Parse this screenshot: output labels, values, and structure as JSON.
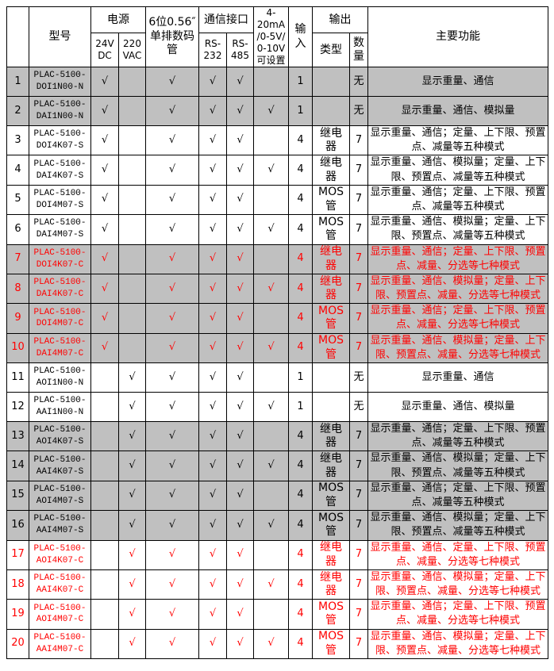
{
  "colors": {
    "highlight_red": "#ff0000",
    "row_shade_gray": "#c0c0c0",
    "grid_line": "#000000",
    "page_background": "#ffffff"
  },
  "table": {
    "check_mark": "√",
    "header": {
      "index": "",
      "model": "型号",
      "power": "电源",
      "power_24v": "24V\nDC",
      "power_220v": "220\nVAC",
      "display": "6位0.56″\n单排数码\n管",
      "comm": "通信接口",
      "rs232": "RS-\n232",
      "rs485": "RS-\n485",
      "analog": "4-20mA\n/0-5V/\n0-10V\n可设置",
      "input": "输\n入",
      "output": "输出",
      "out_type": "类型",
      "out_qty": "数\n量",
      "functions": "主要功能"
    },
    "rows": [
      {
        "no": "1",
        "model": "PLAC-5100-DOI1N00-N",
        "checks": {
          "v24": true,
          "v220": false,
          "display": true,
          "rs232": true,
          "rs485": true,
          "analog": false
        },
        "input": "1",
        "output_type": "",
        "output_qty": "无",
        "functions": "显示重量、通信",
        "shaded": true,
        "highlight": false
      },
      {
        "no": "2",
        "model": "PLAC-5100-DAI1N00-N",
        "checks": {
          "v24": true,
          "v220": false,
          "display": true,
          "rs232": true,
          "rs485": true,
          "analog": true
        },
        "input": "1",
        "output_type": "",
        "output_qty": "无",
        "functions": "显示重量、通信、模拟量",
        "shaded": true,
        "highlight": false
      },
      {
        "no": "3",
        "model": "PLAC-5100-DOI4K07-S",
        "checks": {
          "v24": true,
          "v220": false,
          "display": true,
          "rs232": true,
          "rs485": true,
          "analog": false
        },
        "input": "4",
        "output_type": "继电\n器",
        "output_qty": "7",
        "functions": "显示重量、通信；定量、上下限、预置点、减量等五种模式",
        "shaded": false,
        "highlight": false
      },
      {
        "no": "4",
        "model": "PLAC-5100-DAI4K07-S",
        "checks": {
          "v24": true,
          "v220": false,
          "display": true,
          "rs232": true,
          "rs485": true,
          "analog": true
        },
        "input": "4",
        "output_type": "继电\n器",
        "output_qty": "7",
        "functions": "显示重量、通信、模拟量；定量、上下限、预置点、减量等五种模式",
        "shaded": false,
        "highlight": false
      },
      {
        "no": "5",
        "model": "PLAC-5100-DOI4M07-S",
        "checks": {
          "v24": true,
          "v220": false,
          "display": true,
          "rs232": true,
          "rs485": true,
          "analog": false
        },
        "input": "4",
        "output_type": "MOS\n管",
        "output_qty": "7",
        "functions": "显示重量、通信；定量、上下限、预置点、减量等五种模式",
        "shaded": false,
        "highlight": false
      },
      {
        "no": "6",
        "model": "PLAC-5100-DAI4M07-S",
        "checks": {
          "v24": true,
          "v220": false,
          "display": true,
          "rs232": true,
          "rs485": true,
          "analog": true
        },
        "input": "4",
        "output_type": "MOS\n管",
        "output_qty": "7",
        "functions": "显示重量、通信、模拟量；定量、上下限、预置点、减量等五种模式",
        "shaded": false,
        "highlight": false
      },
      {
        "no": "7",
        "model": "PLAC-5100-DOI4K07-C",
        "checks": {
          "v24": true,
          "v220": false,
          "display": true,
          "rs232": true,
          "rs485": true,
          "analog": false
        },
        "input": "4",
        "output_type": "继电\n器",
        "output_qty": "7",
        "functions": "显示重量、通信；定量、上下限、预置点、减量、分选等七种模式",
        "shaded": true,
        "highlight": true
      },
      {
        "no": "8",
        "model": "PLAC-5100-DAI4K07-C",
        "checks": {
          "v24": true,
          "v220": false,
          "display": true,
          "rs232": true,
          "rs485": true,
          "analog": true
        },
        "input": "4",
        "output_type": "继电\n器",
        "output_qty": "7",
        "functions": "显示重量、通信、模拟量；定量、上下限、预置点、减量、分选等七种模式",
        "shaded": true,
        "highlight": true
      },
      {
        "no": "9",
        "model": "PLAC-5100-DOI4M07-C",
        "checks": {
          "v24": true,
          "v220": false,
          "display": true,
          "rs232": true,
          "rs485": true,
          "analog": false
        },
        "input": "4",
        "output_type": "MOS\n管",
        "output_qty": "7",
        "functions": "显示重量、通信；定量、上下限、预置点、减量、分选等七种模式",
        "shaded": true,
        "highlight": true
      },
      {
        "no": "10",
        "model": "PLAC-5100-DAI4M07-C",
        "checks": {
          "v24": true,
          "v220": false,
          "display": true,
          "rs232": true,
          "rs485": true,
          "analog": true
        },
        "input": "4",
        "output_type": "MOS\n管",
        "output_qty": "7",
        "functions": "显示重量、通信、模拟量；定量、上下限、预置点、减量、分选等七种模式",
        "shaded": true,
        "highlight": true
      },
      {
        "no": "11",
        "model": "PLAC-5100-AOI1N00-N",
        "checks": {
          "v24": false,
          "v220": true,
          "display": true,
          "rs232": true,
          "rs485": true,
          "analog": false
        },
        "input": "1",
        "output_type": "",
        "output_qty": "无",
        "functions": "显示重量、通信",
        "shaded": false,
        "highlight": false
      },
      {
        "no": "12",
        "model": "PLAC-5100-AAI1N00-N",
        "checks": {
          "v24": false,
          "v220": true,
          "display": true,
          "rs232": true,
          "rs485": true,
          "analog": true
        },
        "input": "1",
        "output_type": "",
        "output_qty": "无",
        "functions": "显示重量、通信、模拟量",
        "shaded": false,
        "highlight": false
      },
      {
        "no": "13",
        "model": "PLAC-5100-AOI4K07-S",
        "checks": {
          "v24": false,
          "v220": true,
          "display": true,
          "rs232": true,
          "rs485": true,
          "analog": false
        },
        "input": "4",
        "output_type": "继电\n器",
        "output_qty": "7",
        "functions": "显示重量、通信；定量、上下限、预置点、减量等五种模式",
        "shaded": true,
        "highlight": false
      },
      {
        "no": "14",
        "model": "PLAC-5100-AAI4K07-S",
        "checks": {
          "v24": false,
          "v220": true,
          "display": true,
          "rs232": true,
          "rs485": true,
          "analog": true
        },
        "input": "4",
        "output_type": "继电\n器",
        "output_qty": "7",
        "functions": "显示重量、通信、模拟量；定量、上下限、预置点、减量等五种模式",
        "shaded": true,
        "highlight": false
      },
      {
        "no": "15",
        "model": "PLAC-5100-AOI4M07-S",
        "checks": {
          "v24": false,
          "v220": true,
          "display": true,
          "rs232": true,
          "rs485": true,
          "analog": false
        },
        "input": "4",
        "output_type": "MOS\n管",
        "output_qty": "7",
        "functions": "显示重量、通信；定量、上下限、预置点、减量等五种模式",
        "shaded": true,
        "highlight": false
      },
      {
        "no": "16",
        "model": "PLAC-5100-AAI4M07-S",
        "checks": {
          "v24": false,
          "v220": true,
          "display": true,
          "rs232": true,
          "rs485": true,
          "analog": true
        },
        "input": "4",
        "output_type": "MOS\n管",
        "output_qty": "7",
        "functions": "显示重量、通信、模拟量；定量、上下限、预置点、减量等五种模式",
        "shaded": true,
        "highlight": false
      },
      {
        "no": "17",
        "model": "PLAC-5100-AOI4K07-C",
        "checks": {
          "v24": false,
          "v220": true,
          "display": true,
          "rs232": true,
          "rs485": true,
          "analog": false
        },
        "input": "4",
        "output_type": "继电\n器",
        "output_qty": "7",
        "functions": "显示重量、通信、定量、上下限、预置点、减量、分选等七种模式",
        "shaded": false,
        "highlight": true
      },
      {
        "no": "18",
        "model": "PLAC-5100-AAI4K07-C",
        "checks": {
          "v24": false,
          "v220": true,
          "display": true,
          "rs232": true,
          "rs485": true,
          "analog": true
        },
        "input": "4",
        "output_type": "继电\n器",
        "output_qty": "7",
        "functions": "显示重量、通信、模拟量；定量、上下限、预置点、减量、分选等七种模式",
        "shaded": false,
        "highlight": true
      },
      {
        "no": "19",
        "model": "PLAC-5100-AOI4M07-C",
        "checks": {
          "v24": false,
          "v220": true,
          "display": true,
          "rs232": true,
          "rs485": true,
          "analog": false
        },
        "input": "4",
        "output_type": "MOS\n管",
        "output_qty": "7",
        "functions": "显示重量、通信；定量、上下限、预置点、减量、分选等七种模式",
        "shaded": false,
        "highlight": true
      },
      {
        "no": "20",
        "model": "PLAC-5100-AAI4M07-C",
        "checks": {
          "v24": false,
          "v220": true,
          "display": true,
          "rs232": true,
          "rs485": true,
          "analog": true
        },
        "input": "4",
        "output_type": "MOS\n管",
        "output_qty": "7",
        "functions": "显示重量、通信、模拟量；定量、上下限、预置点、减量、分选等七种模式",
        "shaded": false,
        "highlight": true
      }
    ]
  }
}
